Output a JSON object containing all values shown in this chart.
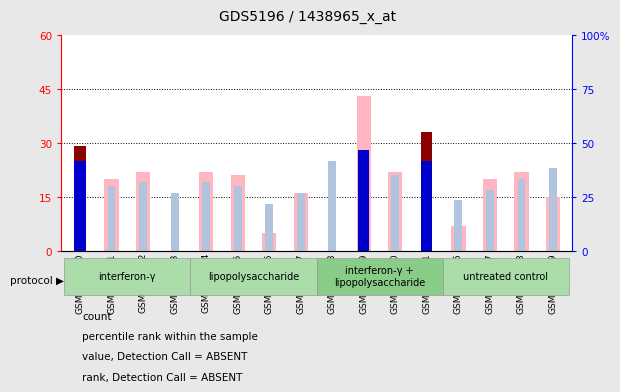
{
  "title": "GDS5196 / 1438965_x_at",
  "samples": [
    "GSM1304840",
    "GSM1304841",
    "GSM1304842",
    "GSM1304843",
    "GSM1304844",
    "GSM1304845",
    "GSM1304846",
    "GSM1304847",
    "GSM1304848",
    "GSM1304849",
    "GSM1304850",
    "GSM1304851",
    "GSM1304836",
    "GSM1304837",
    "GSM1304838",
    "GSM1304839"
  ],
  "count_values": [
    29,
    0,
    0,
    0,
    0,
    0,
    0,
    0,
    0,
    0,
    0,
    33,
    0,
    0,
    0,
    0
  ],
  "percentile_values": [
    25,
    0,
    0,
    0,
    0,
    0,
    0,
    0,
    0,
    28,
    0,
    25,
    0,
    0,
    0,
    0
  ],
  "value_absent": [
    0,
    20,
    22,
    0,
    22,
    21,
    5,
    16,
    0,
    43,
    22,
    0,
    7,
    20,
    22,
    15
  ],
  "rank_absent": [
    0,
    18,
    19,
    16,
    19,
    18,
    13,
    16,
    25,
    0,
    21,
    0,
    14,
    17,
    20,
    23
  ],
  "protocols": [
    {
      "label": "interferon-γ",
      "start": 0,
      "end": 4,
      "color": "#aaddaa"
    },
    {
      "label": "lipopolysaccharide",
      "start": 4,
      "end": 8,
      "color": "#aaddaa"
    },
    {
      "label": "interferon-γ +\nlipopolysaccharide",
      "start": 8,
      "end": 12,
      "color": "#88cc88"
    },
    {
      "label": "untreated control",
      "start": 12,
      "end": 16,
      "color": "#aaddaa"
    }
  ],
  "left_ylim": [
    0,
    60
  ],
  "left_yticks": [
    0,
    15,
    30,
    45,
    60
  ],
  "right_ylim": [
    0,
    100
  ],
  "right_yticks": [
    0,
    25,
    50,
    75,
    100
  ],
  "color_count": "#8B0000",
  "color_percentile": "#0000CD",
  "color_value_absent": "#FFB6C1",
  "color_rank_absent": "#B0C4DE",
  "bg_color": "#e8e8e8",
  "plot_bg": "#ffffff"
}
